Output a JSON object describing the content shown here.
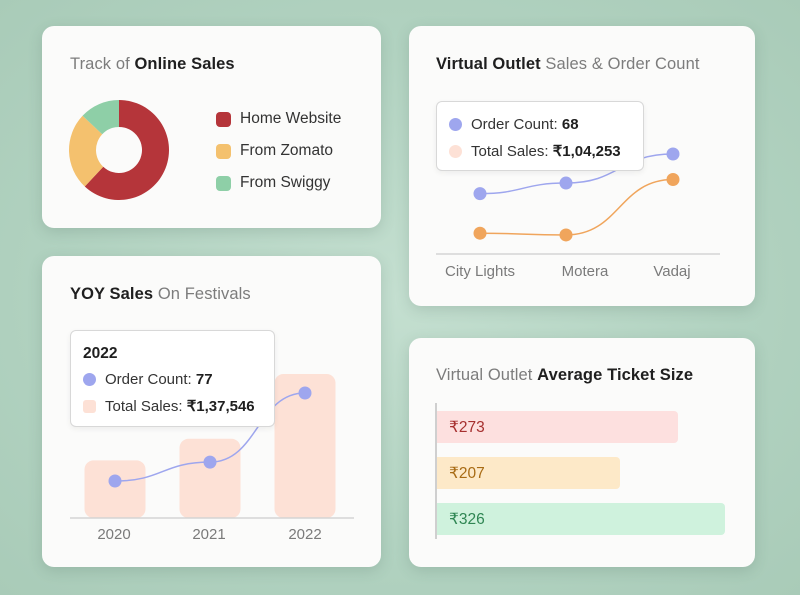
{
  "colors": {
    "red": "#b5353a",
    "yellow": "#f4c16e",
    "green": "#8ecfa7",
    "blue": "#9ea6ee",
    "orange": "#f0a55c",
    "peach": "#fde1d6"
  },
  "online_sales": {
    "title_light": "Track of ",
    "title_bold": "Online Sales",
    "legend": [
      "Home Website",
      "From Zomato",
      "From Swiggy"
    ]
  },
  "virtual_outlet": {
    "title_bold": "Virtual Outlet",
    "title_light": " Sales & Order Count",
    "tooltip": {
      "order_label": "Order Count: ",
      "order_value": "68",
      "sales_label": "Total Sales: ",
      "sales_value": "₹1,04,253"
    }
  },
  "yoy_sales": {
    "title_bold": "YOY Sales",
    "title_light": " On Festivals",
    "tooltip": {
      "year": "2022",
      "order_label": "Order Count: ",
      "order_value": "77",
      "sales_label": "Total Sales: ",
      "sales_value": "₹1,37,546"
    }
  },
  "ticket_size": {
    "title_light": "Virtual Outlet ",
    "title_bold": "Average Ticket Size"
  },
  "chart_data": [
    {
      "type": "pie",
      "categories": [
        "Home Website",
        "From Zomato",
        "From Swiggy"
      ],
      "values": [
        62,
        25,
        13
      ]
    },
    {
      "type": "line",
      "categories": [
        "City Lights",
        "Motera",
        "Vadaj"
      ],
      "series": [
        {
          "values": [
            0.55,
            0.67,
            1.0
          ]
        },
        {
          "values": [
            0.1,
            0.08,
            0.71
          ]
        }
      ]
    },
    {
      "type": "bar",
      "categories": [
        "2020",
        "2021",
        "2022"
      ],
      "values": [
        0.4,
        0.55,
        1.0
      ],
      "series": [
        {
          "values": [
            0.3,
            0.45,
            1.0
          ]
        }
      ]
    },
    {
      "type": "bar",
      "orientation": "horizontal",
      "labels": [
        "₹273",
        "₹207",
        "₹326"
      ],
      "values": [
        273,
        207,
        326
      ]
    }
  ]
}
